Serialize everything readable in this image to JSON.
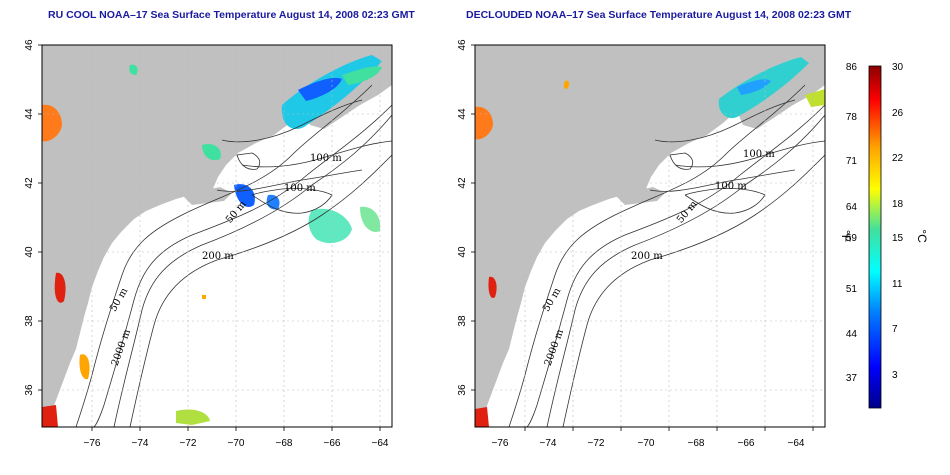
{
  "panels": [
    {
      "id": "left",
      "title": "RU COOL NOAA–17 Sea Surface Temperature August 14, 2008 02:23 GMT",
      "contour_labels": [
        "100 m",
        "100 m",
        "50 m",
        "200 m",
        "50 m",
        "2000 m"
      ]
    },
    {
      "id": "right",
      "title": "DECLOUDED NOAA–17 Sea Surface Temperature August 14, 2008 02:23 GMT",
      "contour_labels": [
        "100 m",
        "100 m",
        "50 m",
        "200 m",
        "50 m",
        "2000 m"
      ]
    }
  ],
  "axes": {
    "x_ticks": [
      "−76",
      "−74",
      "−72",
      "−70",
      "−68",
      "−66",
      "−64"
    ],
    "y_ticks": [
      "46",
      "44",
      "42",
      "40",
      "38",
      "36"
    ]
  },
  "colorbar": {
    "fahrenheit_unit": "°F",
    "celsius_unit": "°C",
    "fahrenheit_ticks": [
      "86",
      "78",
      "71",
      "64",
      "59",
      "51",
      "44",
      "37"
    ],
    "celsius_ticks": [
      "30",
      "26",
      "22",
      "18",
      "15",
      "11",
      "7",
      "3"
    ],
    "colors": [
      "#00008b",
      "#0000ff",
      "#0080ff",
      "#00ffff",
      "#40e0a0",
      "#ffff00",
      "#ffa500",
      "#ff0000",
      "#8b0000"
    ]
  },
  "colors": {
    "land": "#c0c0c0",
    "ocean": "#ffffff",
    "title": "#1a1aa0"
  }
}
